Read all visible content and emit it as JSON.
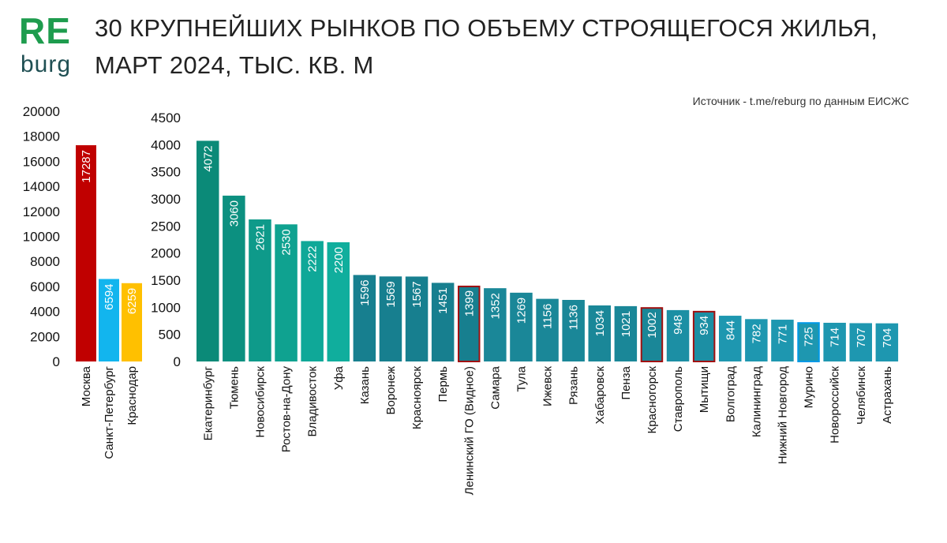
{
  "logo": {
    "top": "RE",
    "bottom": "burg"
  },
  "header": {
    "title_line1": "30 КРУПНЕЙШИХ РЫНКОВ ПО ОБЪЕМУ СТРОЯЩЕГОСЯ ЖИЛЬЯ,",
    "title_line2": "МАРТ 2024, ТЫС. КВ. М",
    "source": "Источник - t.me/reburg по данным ЕИСЖС"
  },
  "chart_data": [
    {
      "type": "bar",
      "title": "30 КРУПНЕЙШИХ РЫНКОВ ПО ОБЪЕМУ СТРОЯЩЕГОСЯ ЖИЛЬЯ, МАРТ 2024, ТЫС. КВ. М",
      "ylim": [
        0,
        20000
      ],
      "yticks": [
        0,
        2000,
        4000,
        6000,
        8000,
        10000,
        12000,
        14000,
        16000,
        18000,
        20000
      ],
      "categories": [
        "Москва",
        "Санкт-Петербург",
        "Краснодар"
      ],
      "values": [
        17287,
        6594,
        6259
      ],
      "colors": [
        "#c00000",
        "#12b5ee",
        "#ffc000"
      ]
    },
    {
      "type": "bar",
      "ylim": [
        0,
        4500
      ],
      "yticks": [
        0,
        500,
        1000,
        1500,
        2000,
        2500,
        3000,
        3500,
        4000,
        4500
      ],
      "categories": [
        "Екатеринбург",
        "Тюмень",
        "Новосибирск",
        "Ростов-на-Дону",
        "Владивосток",
        "Уфа",
        "Казань",
        "Воронеж",
        "Красноярск",
        "Пермь",
        "Ленинский ГО (Видное)",
        "Самара",
        "Тула",
        "Ижевск",
        "Рязань",
        "Хабаровск",
        "Пенза",
        "Красногорск",
        "Ставрополь",
        "Мытищи",
        "Волгоград",
        "Калининград",
        "Нижний Новгород",
        "Мурино",
        "Новороссийск",
        "Челябинск",
        "Астрахань"
      ],
      "values": [
        4072,
        3060,
        2621,
        2530,
        2222,
        2200,
        1596,
        1569,
        1567,
        1451,
        1399,
        1352,
        1269,
        1156,
        1136,
        1034,
        1021,
        1002,
        948,
        934,
        844,
        782,
        771,
        725,
        714,
        707,
        704
      ],
      "colors": [
        "#0b8a78",
        "#0c9080",
        "#0e9a8a",
        "#0fa290",
        "#0fa898",
        "#10ae9d",
        "#177f8f",
        "#177f8f",
        "#177f8f",
        "#177f8f",
        "#177f8f",
        "#1a8798",
        "#1a8798",
        "#1a8798",
        "#1a8798",
        "#1a8798",
        "#1a8798",
        "#1a8798",
        "#1c8fa4",
        "#1c8fa4",
        "#1e97b0",
        "#1e97b0",
        "#1e97b0",
        "#1e97b0",
        "#1e97b0",
        "#1e97b0",
        "#1e97b0"
      ],
      "highlighted": [
        "Ленинский ГО (Видное)",
        "Красногорск",
        "Мытищи"
      ],
      "outlined_light": [
        "Мурино"
      ],
      "highlight_color": "#a01010",
      "outline_light_color": "#0099e6"
    }
  ]
}
